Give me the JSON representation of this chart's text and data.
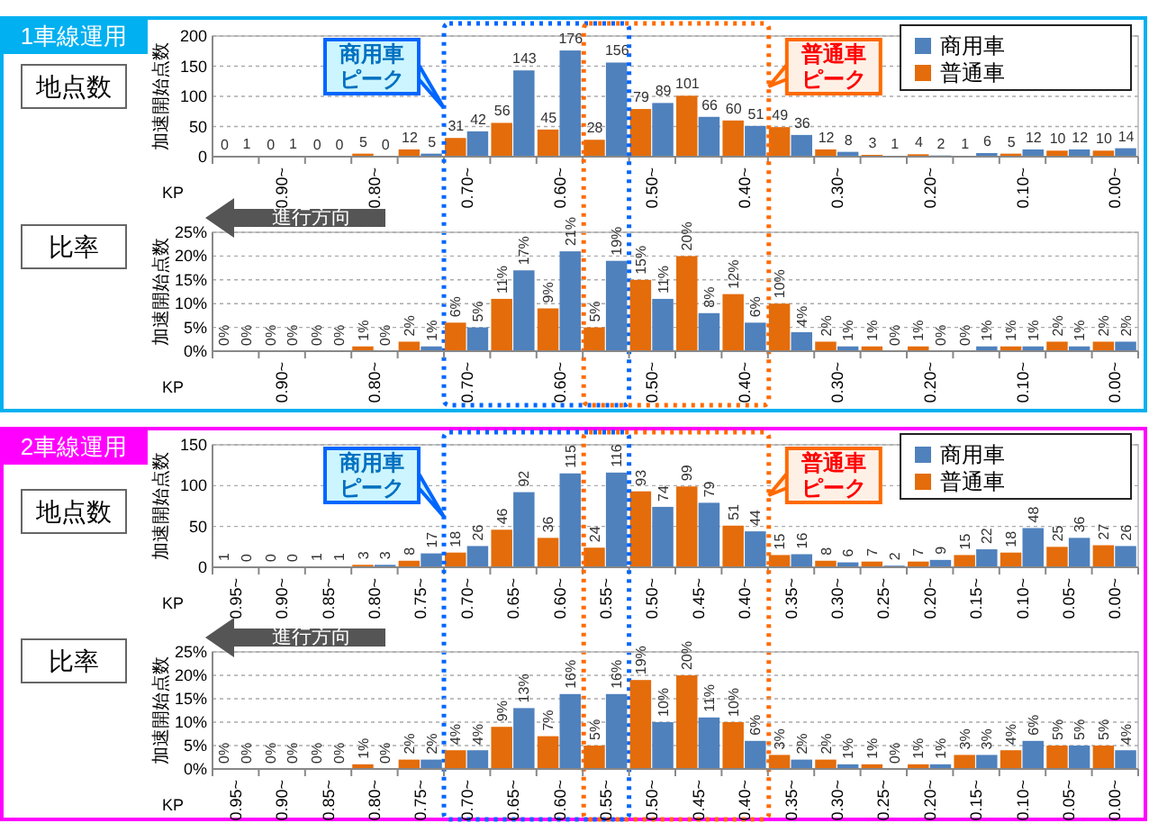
{
  "chart_data": [
    {
      "type": "bar",
      "title": "1車線運用",
      "subtitle": "地点数",
      "xlabel": "KP",
      "ylabel": "加速開始点数",
      "categories": [
        null,
        "0.90~",
        null,
        "0.80~",
        null,
        "0.70~",
        null,
        "0.60~",
        null,
        "0.50~",
        null,
        "0.40~",
        null,
        "0.30~",
        null,
        "0.20~",
        null,
        "0.10~",
        null,
        "0.00~"
      ],
      "series": [
        {
          "name": "商用車",
          "color": "#4f81bd",
          "values": [
            1,
            1,
            0,
            0,
            5,
            42,
            143,
            176,
            156,
            89,
            66,
            51,
            36,
            8,
            1,
            2,
            6,
            12,
            12,
            14
          ]
        },
        {
          "name": "普通車",
          "color": "#e46c0a",
          "values": [
            0,
            0,
            0,
            5,
            12,
            31,
            56,
            45,
            28,
            79,
            101,
            60,
            49,
            12,
            3,
            4,
            1,
            5,
            10,
            10
          ]
        }
      ],
      "ylim": [
        0,
        200
      ],
      "yticks": [
        0,
        50,
        100,
        150,
        200
      ],
      "grid": "y",
      "legend": "top right",
      "data_labels": true,
      "annotations": [
        "商用車ピーク",
        "普通車ピーク"
      ]
    },
    {
      "type": "bar",
      "subtitle": "比率",
      "xlabel": "KP",
      "ylabel": "加速開始点数",
      "categories": [
        null,
        "0.90~",
        null,
        "0.80~",
        null,
        "0.70~",
        null,
        "0.60~",
        null,
        "0.50~",
        null,
        "0.40~",
        null,
        "0.30~",
        null,
        "0.20~",
        null,
        "0.10~",
        null,
        "0.00~"
      ],
      "series": [
        {
          "color": "#4f81bd",
          "values": [
            0,
            0,
            0,
            0,
            1,
            5,
            17,
            21,
            19,
            11,
            8,
            6,
            4,
            1,
            0,
            0,
            1,
            1,
            1,
            2
          ],
          "value_labels": [
            "0%",
            "0%",
            "0%",
            "0%",
            "1%",
            "5%",
            "17%",
            "21%",
            "19%",
            "11%",
            "8%",
            "6%",
            "4%",
            "1%",
            "0%",
            "0%",
            "1%",
            "1%",
            "1%",
            "2%"
          ]
        },
        {
          "color": "#e46c0a",
          "values": [
            0,
            0,
            0,
            1,
            2,
            6,
            11,
            9,
            5,
            15,
            20,
            12,
            10,
            2,
            1,
            1,
            0,
            1,
            2,
            2
          ],
          "value_labels": [
            "0%",
            "0%",
            "0%",
            "1%",
            "2%",
            "6%",
            "11%",
            "9%",
            "5%",
            "15%",
            "20%",
            "12%",
            "10%",
            "2%",
            "1%",
            "1%",
            "0%",
            "1%",
            "2%",
            "2%"
          ]
        }
      ],
      "ylim": [
        0,
        25
      ],
      "yticks": [
        {
          "value": 0,
          "label": "0%"
        },
        {
          "value": 5,
          "label": "5%"
        },
        {
          "value": 10,
          "label": "10%"
        },
        {
          "value": 15,
          "label": "15%"
        },
        {
          "value": 20,
          "label": "20%"
        },
        {
          "value": 25,
          "label": "25%"
        }
      ],
      "grid": "y",
      "annotations": [
        "進行方向"
      ]
    },
    {
      "type": "bar",
      "title": "2車線運用",
      "subtitle": "地点数",
      "xlabel": "KP",
      "ylabel": "加速開始点数",
      "categories": [
        "0.95~",
        "0.90~",
        "0.85~",
        "0.80~",
        "0.75~",
        "0.70~",
        "0.65~",
        "0.60~",
        "0.55~",
        "0.50~",
        "0.45~",
        "0.40~",
        "0.35~",
        "0.30~",
        "0.25~",
        "0.20~",
        "0.15~",
        "0.10~",
        "0.05~",
        "0.00~"
      ],
      "series": [
        {
          "name": "商用車",
          "color": "#4f81bd",
          "values": [
            0,
            0,
            1,
            3,
            17,
            26,
            92,
            115,
            116,
            74,
            79,
            44,
            16,
            6,
            2,
            9,
            22,
            48,
            36,
            26
          ]
        },
        {
          "name": "普通車",
          "color": "#e46c0a",
          "values": [
            1,
            0,
            1,
            3,
            8,
            18,
            46,
            36,
            24,
            93,
            99,
            51,
            15,
            8,
            7,
            7,
            15,
            18,
            25,
            27
          ]
        }
      ],
      "ylim": [
        0,
        150
      ],
      "yticks": [
        0,
        50,
        100,
        150
      ],
      "grid": "y",
      "legend": "top right",
      "data_labels": true,
      "annotations": [
        "商用車ピーク",
        "普通車ピーク"
      ]
    },
    {
      "type": "bar",
      "subtitle": "比率",
      "xlabel": "KP",
      "ylabel": "加速開始点数",
      "categories": [
        "0.95~",
        "0.90~",
        "0.85~",
        "0.80~",
        "0.75~",
        "0.70~",
        "0.65~",
        "0.60~",
        "0.55~",
        "0.50~",
        "0.45~",
        "0.40~",
        "0.35~",
        "0.30~",
        "0.25~",
        "0.20~",
        "0.15~",
        "0.10~",
        "0.05~",
        "0.00~"
      ],
      "series": [
        {
          "color": "#4f81bd",
          "values": [
            0,
            0,
            0,
            0,
            2,
            4,
            13,
            16,
            16,
            10,
            11,
            6,
            2,
            1,
            0,
            1,
            3,
            6,
            5,
            4
          ],
          "value_labels": [
            "0%",
            "0%",
            "0%",
            "0%",
            "2%",
            "4%",
            "13%",
            "16%",
            "16%",
            "10%",
            "11%",
            "6%",
            "2%",
            "1%",
            "0%",
            "1%",
            "3%",
            "6%",
            "5%",
            "4%"
          ]
        },
        {
          "color": "#e46c0a",
          "values": [
            0,
            0,
            0,
            1,
            2,
            4,
            9,
            7,
            5,
            19,
            20,
            10,
            3,
            2,
            1,
            1,
            3,
            4,
            5,
            5
          ],
          "value_labels": [
            "0%",
            "0%",
            "0%",
            "1%",
            "2%",
            "4%",
            "9%",
            "7%",
            "5%",
            "19%",
            "20%",
            "10%",
            "3%",
            "2%",
            "1%",
            "1%",
            "3%",
            "4%",
            "5%",
            "5%"
          ]
        }
      ],
      "ylim": [
        0,
        25
      ],
      "yticks": [
        {
          "value": 0,
          "label": "0%"
        },
        {
          "value": 5,
          "label": "5%"
        },
        {
          "value": 10,
          "label": "10%"
        },
        {
          "value": 15,
          "label": "15%"
        },
        {
          "value": 20,
          "label": "20%"
        },
        {
          "value": 25,
          "label": "25%"
        }
      ],
      "grid": "y",
      "annotations": [
        "進行方向"
      ]
    }
  ]
}
